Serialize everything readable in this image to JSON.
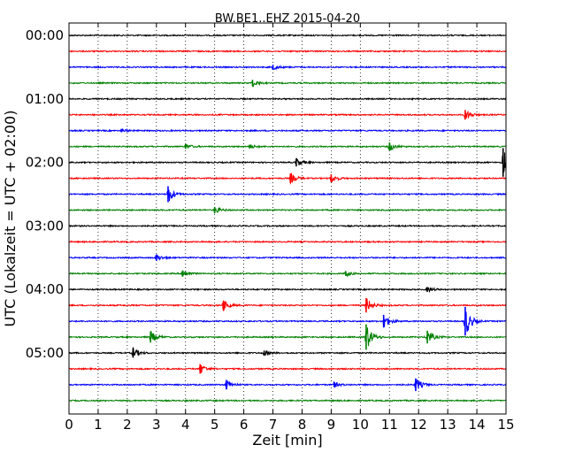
{
  "chart_data": {
    "type": "line",
    "title": "BW.BE1..EHZ 2015-04-20",
    "xlabel": "Zeit  [min]",
    "ylabel": "UTC (Lokalzeit = UTC + 02:00)",
    "xlim": [
      0,
      15
    ],
    "x_ticks": [
      "0",
      "1",
      "2",
      "3",
      "4",
      "5",
      "6",
      "7",
      "8",
      "9",
      "10",
      "11",
      "12",
      "13",
      "14",
      "15"
    ],
    "y_ticks": [
      "00:00",
      "01:00",
      "02:00",
      "03:00",
      "04:00",
      "05:00"
    ],
    "trace_interval_minutes": 15,
    "trace_count": 24,
    "grid": "vertical dotted at each minute",
    "colors": [
      "#000000",
      "#ff0000",
      "#0000ff",
      "#008000"
    ],
    "events": [
      {
        "trace": 2,
        "minute": 7.0,
        "amplitude": 0.15
      },
      {
        "trace": 3,
        "minute": 6.3,
        "amplitude": 0.2
      },
      {
        "trace": 5,
        "minute": 13.6,
        "amplitude": 0.3
      },
      {
        "trace": 6,
        "minute": 1.8,
        "amplitude": 0.1
      },
      {
        "trace": 7,
        "minute": 4.0,
        "amplitude": 0.15
      },
      {
        "trace": 7,
        "minute": 6.2,
        "amplitude": 0.12
      },
      {
        "trace": 7,
        "minute": 11.0,
        "amplitude": 0.25
      },
      {
        "trace": 8,
        "minute": 7.8,
        "amplitude": 0.25
      },
      {
        "trace": 8,
        "minute": 14.9,
        "amplitude": 0.9
      },
      {
        "trace": 9,
        "minute": 7.6,
        "amplitude": 0.3
      },
      {
        "trace": 9,
        "minute": 9.0,
        "amplitude": 0.25
      },
      {
        "trace": 10,
        "minute": 3.4,
        "amplitude": 0.5
      },
      {
        "trace": 11,
        "minute": 5.0,
        "amplitude": 0.2
      },
      {
        "trace": 14,
        "minute": 3.0,
        "amplitude": 0.2
      },
      {
        "trace": 15,
        "minute": 3.9,
        "amplitude": 0.2
      },
      {
        "trace": 15,
        "minute": 9.5,
        "amplitude": 0.15
      },
      {
        "trace": 16,
        "minute": 12.3,
        "amplitude": 0.15
      },
      {
        "trace": 17,
        "minute": 5.3,
        "amplitude": 0.3
      },
      {
        "trace": 17,
        "minute": 10.2,
        "amplitude": 0.45
      },
      {
        "trace": 18,
        "minute": 10.8,
        "amplitude": 0.4
      },
      {
        "trace": 18,
        "minute": 13.6,
        "amplitude": 0.9
      },
      {
        "trace": 19,
        "minute": 2.8,
        "amplitude": 0.35
      },
      {
        "trace": 19,
        "minute": 10.2,
        "amplitude": 0.8
      },
      {
        "trace": 19,
        "minute": 12.3,
        "amplitude": 0.4
      },
      {
        "trace": 20,
        "minute": 2.2,
        "amplitude": 0.3
      },
      {
        "trace": 20,
        "minute": 6.7,
        "amplitude": 0.15
      },
      {
        "trace": 21,
        "minute": 4.5,
        "amplitude": 0.3
      },
      {
        "trace": 22,
        "minute": 5.4,
        "amplitude": 0.3
      },
      {
        "trace": 22,
        "minute": 9.1,
        "amplitude": 0.15
      },
      {
        "trace": 22,
        "minute": 11.9,
        "amplitude": 0.4
      }
    ]
  }
}
